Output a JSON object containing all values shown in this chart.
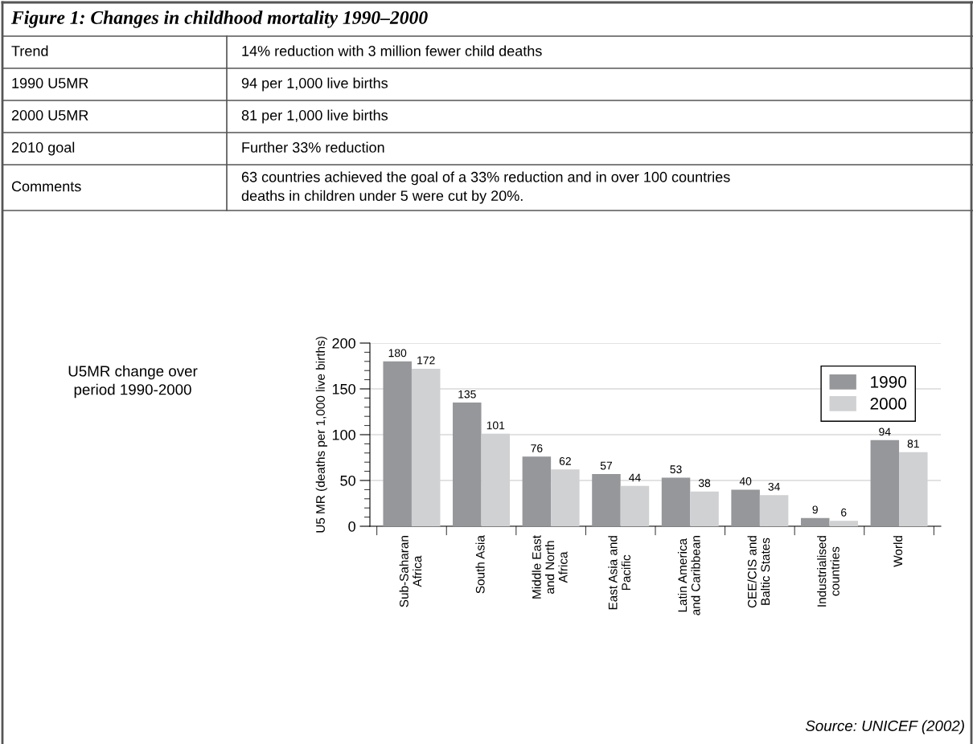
{
  "chart_data": {
    "type": "bar",
    "title": "Figure 1: Changes in childhood mortality 1990–2000",
    "ylabel": "U5 MR (deaths per 1,000 live births)",
    "categories": [
      "Sub-Saharan\nAfrica",
      "South Asia",
      "Middle East\nand North\nAfrica",
      "East Asia and\nPacific",
      "Latin America\nand Caribbean",
      "CEE/CIS and\nBaltic States",
      "Industrialised\ncountries",
      "World"
    ],
    "series": [
      {
        "name": "1990",
        "color": "#96979b",
        "values": [
          180,
          135,
          76,
          57,
          53,
          40,
          9,
          94
        ]
      },
      {
        "name": "2000",
        "color": "#d0d1d3",
        "values": [
          172,
          101,
          62,
          44,
          38,
          34,
          6,
          81
        ]
      }
    ],
    "ylim": [
      0,
      200
    ],
    "yticks": [
      0,
      50,
      100,
      150,
      200
    ],
    "grid": "y",
    "legend": "top right",
    "data_labels": true,
    "annotations": [
      "Trend",
      "14% reduction with 3 million fewer child deaths",
      "1990 U5MR",
      "94 per 1,000 live births",
      "2000 U5MR",
      "81 per 1,000 live births",
      "2010 goal",
      "Further 33% reduction",
      "Comments",
      "63 countries achieved the goal of a 33% reduction and in over 100 countries\ndeaths in children under 5 were cut by 20%.",
      "U5MR change over\nperiod 1990-2000",
      "Source: UNICEF (2002)"
    ]
  }
}
